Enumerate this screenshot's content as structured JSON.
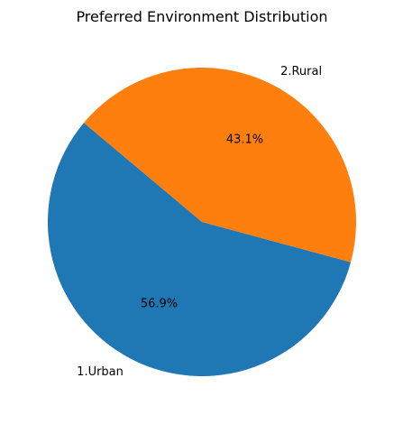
{
  "chart_data": {
    "type": "pie",
    "title": "Preferred Environment Distribution",
    "slices": [
      {
        "label": "1.Urban",
        "value": 56.9,
        "pct_label": "56.9%",
        "color": "#1f77b4"
      },
      {
        "label": "2.Rural",
        "value": 43.1,
        "pct_label": "43.1%",
        "color": "#ff7f0e"
      }
    ],
    "start_angle_deg": 140,
    "direction": "counterclockwise",
    "legend": "none"
  }
}
